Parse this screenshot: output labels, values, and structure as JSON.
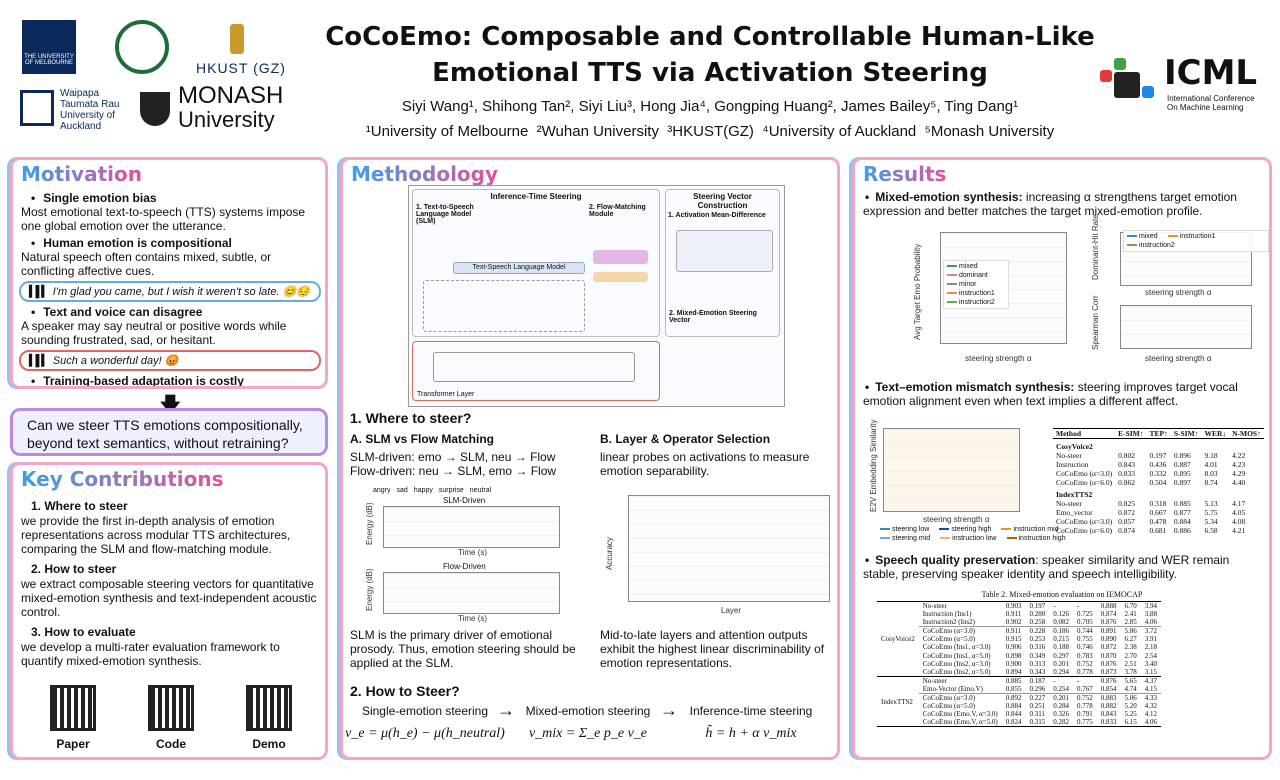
{
  "header": {
    "title_line1": "CoCoEmo: Composable and Controllable Human-Like",
    "title_line2": "Emotional TTS via Activation Steering",
    "authors": "Siyi Wang¹, Shihong Tan², Siyi Liu³, Hong Jia⁴, Gongping Huang², James Bailey⁵, Ting Dang¹",
    "affiliations": "¹University of Melbourne  ²Wuhan University  ³HKUST(GZ)  ⁴University of Auckland  ⁵Monash University",
    "logo_melbourne": "THE UNIVERSITY OF MELBOURNE",
    "logo_hkust": "HKUST (GZ)",
    "logo_auckland": "Waipapa Taumata Rau University of Auckland",
    "logo_monash_1": "MONASH",
    "logo_monash_2": "University",
    "icml_title": "ICML",
    "icml_subtitle": "International Conference On Machine Learning"
  },
  "motivation": {
    "title": "Motivation",
    "items": [
      {
        "heading": "Single emotion bias",
        "text": "Most emotional text-to-speech (TTS) systems impose one global emotion over the utterance."
      },
      {
        "heading": "Human emotion is compositional",
        "text": "Natural speech often contains mixed, subtle, or conflicting affective cues."
      },
      {
        "quote": "I'm glad you came, but I wish it weren't so late. 😊😔",
        "color": "#6fa8dc"
      },
      {
        "heading": "Text and voice can disagree",
        "text": "A speaker may say neutral or positive words while sounding frustrated, sad, or hesitant."
      },
      {
        "quote": "Such a wonderful day! 😡",
        "color": "#e06666"
      },
      {
        "heading": "Training-based adaptation is costly"
      }
    ]
  },
  "question": "Can we steer TTS emotions compositionally, beyond text semantics, without retraining?",
  "contributions": {
    "title": "Key Contributions",
    "items": [
      {
        "heading": "1. Where to steer",
        "text": "we provide the first in-depth analysis of emotion representations across modular TTS architectures, comparing the SLM and flow-matching module."
      },
      {
        "heading": "2. How to steer",
        "text": "we extract composable steering vectors for quantitative mixed-emotion synthesis and text-independent acoustic control."
      },
      {
        "heading": "3. How to evaluate",
        "text": "we develop a multi-rater evaluation framework to quantify mixed-emotion synthesis."
      }
    ],
    "qr_labels": [
      "Paper",
      "Code",
      "Demo"
    ]
  },
  "methodology": {
    "title": "Methodology",
    "figure": {
      "left_title": "Inference-Time Steering",
      "right_title": "Steering Vector Construction",
      "slm": "1. Text-to-Speech Language Model (SLM)",
      "flow": "2. Flow-Matching Module",
      "lm": "Text-Speech Language Model",
      "layer": "Transformer Layer",
      "amd": "1. Activation Mean-Difference",
      "mix": "2. Mixed-Emotion Steering Vector"
    },
    "where_title": "1. Where to steer?",
    "a_title": "A. SLM vs Flow Matching",
    "a_lines": [
      "SLM-driven: emo → SLM, neu → Flow",
      "Flow-driven: neu → SLM, emo → Flow"
    ],
    "a_legend": [
      {
        "name": "angry",
        "color": "#e06666"
      },
      {
        "name": "sad",
        "color": "#6fa8dc"
      },
      {
        "name": "happy",
        "color": "#f6b26b"
      },
      {
        "name": "surprise",
        "color": "#93c47d"
      },
      {
        "name": "neutral",
        "color": "#999999"
      }
    ],
    "a_chart1": "SLM-Driven",
    "a_chart2": "Flow-Driven",
    "a_xlabel": "Time (s)",
    "a_ylabel": "Energy (dB)",
    "a_caption": "SLM is the primary driver of emotional prosody. Thus, emotion steering should be applied at the SLM.",
    "b_title": "B. Layer & Operator Selection",
    "b_text": "linear probes on activations to measure emotion separability.",
    "b_xlabel": "Layer",
    "b_ylabel": "Accuracy",
    "b_caption": "Mid-to-late layers and attention outputs exhibit the highest linear discriminability of emotion representations.",
    "how_title": "2. How to Steer?",
    "steps": [
      "Single-emotion steering",
      "Mixed-emotion steering",
      "Inference-time steering"
    ],
    "formulas": [
      "v_e = μ(h_e) − μ(h_neutral)",
      "v_mix = Σ_e p_e v_e",
      "h̃ = h + α v_mix"
    ]
  },
  "results": {
    "title": "Results",
    "items": [
      {
        "heading": "Mixed-emotion synthesis:",
        "text": " increasing α strengthens target emotion expression and better matches the target mixed-emotion profile."
      },
      {
        "heading": "Text–emotion mismatch synthesis:",
        "text": " steering improves target vocal emotion alignment even when text implies a different affect."
      },
      {
        "heading": "Speech quality preservation",
        "text": ": speaker similarity and WER remain stable, preserving speaker identity and speech intelligibility."
      }
    ],
    "plot1": {
      "ylabel": "Avg Target Emo Probability",
      "xlabel": "steering strength α",
      "legend": [
        {
          "name": "mixed",
          "color": "#3d85c6"
        },
        {
          "name": "dominant",
          "color": "#e377c2"
        },
        {
          "name": "minor",
          "color": "#888888"
        },
        {
          "name": "instruction1",
          "color": "#e69138"
        },
        {
          "name": "instruction2",
          "color": "#6aa84f"
        }
      ]
    },
    "plot2": {
      "ylabel": "Dominant-Hit Rate",
      "ylabel2": "Spearman Corr",
      "xlabel": "steering strength α",
      "legend": [
        {
          "name": "mixed",
          "color": "#3d85c6"
        },
        {
          "name": "instruction1",
          "color": "#e69138"
        },
        {
          "name": "instruction2",
          "color": "#6aa84f"
        }
      ]
    },
    "plot3": {
      "ylabel": "E2V Embedding Similarity",
      "xlabel": "steering strength α",
      "legend": [
        {
          "name": "steering low",
          "color": "#3d85c6"
        },
        {
          "name": "steering high",
          "color": "#134f8c"
        },
        {
          "name": "instruction mid",
          "color": "#e69138"
        },
        {
          "name": "steering mid",
          "color": "#6fa8dc"
        },
        {
          "name": "instruction low",
          "color": "#f6b26b"
        },
        {
          "name": "instruction high",
          "color": "#b45f06"
        }
      ]
    },
    "table1": {
      "header": [
        "Method",
        "E-SIM↑",
        "TEP↑",
        "S-SIM↑",
        "WER↓",
        "N-MOS↑"
      ],
      "groups": [
        {
          "name": "CosyVoice2",
          "rows": [
            [
              "No-steer",
              "0.802",
              "0.197",
              "0.896",
              "9.18",
              "4.22"
            ],
            [
              "Instruction",
              "0.843",
              "0.436",
              "0.887",
              "4.01",
              "4.23"
            ],
            [
              "CoCoEmo (α=3.0)",
              "0.833",
              "0.332",
              "0.895",
              "8.03",
              "4.29"
            ],
            [
              "CoCoEmo (α=6.0)",
              "0.862",
              "0.504",
              "0.897",
              "8.74",
              "4.40"
            ]
          ]
        },
        {
          "name": "IndexTTS2",
          "rows": [
            [
              "No-steer",
              "0.825",
              "0.318",
              "0.885",
              "5.13",
              "4.17"
            ],
            [
              "Emo_vector",
              "0.872",
              "0.667",
              "0.877",
              "5.75",
              "4.05"
            ],
            [
              "CoCoEmo (α=3.0)",
              "0.857",
              "0.478",
              "0.884",
              "5.34",
              "4.08"
            ],
            [
              "CoCoEmo (α=6.0)",
              "0.874",
              "0.681",
              "0.886",
              "6.58",
              "4.21"
            ]
          ]
        }
      ]
    },
    "table2": {
      "caption": "Table 2. Mixed-emotion evaluation on IEMOCAP",
      "groups": [
        {
          "name": "CosyVoice2",
          "rows": [
            [
              "No-steer",
              "0.903",
              "0.197",
              "-",
              "-",
              "0.888",
              "6.70",
              "3.94"
            ],
            [
              "Instruction (Ins1)",
              "0.911",
              "0.280",
              "0.126",
              "0.725",
              "0.874",
              "2.41",
              "3.88"
            ],
            [
              "Instruction2 (Ins2)",
              "0.902",
              "0.258",
              "0.082",
              "0.705",
              "0.876",
              "2.85",
              "4.06"
            ],
            [
              "CoCoEmo (α=3.0)",
              "0.911",
              "0.228",
              "0.186",
              "0.744",
              "0.891",
              "5.86",
              "3.72"
            ],
            [
              "CoCoEmo (α=5.0)",
              "0.915",
              "0.253",
              "0.215",
              "0.755",
              "0.890",
              "6.27",
              "3.91"
            ],
            [
              "CoCoEmo (Ins1, α=3.0)",
              "0.906",
              "0.316",
              "0.188",
              "0.746",
              "0.872",
              "2.38",
              "2.18"
            ],
            [
              "CoCoEmo (Ins1, α=5.0)",
              "0.898",
              "0.349",
              "0.297",
              "0.783",
              "0.870",
              "2.70",
              "2.54"
            ],
            [
              "CoCoEmo (Ins2, α=3.0)",
              "0.900",
              "0.313",
              "0.201",
              "0.752",
              "0.876",
              "2.51",
              "3.40"
            ],
            [
              "CoCoEmo (Ins2, α=5.0)",
              "0.894",
              "0.343",
              "0.294",
              "0.778",
              "0.873",
              "3.78",
              "3.15"
            ]
          ]
        },
        {
          "name": "IndexTTS2",
          "rows": [
            [
              "No-steer",
              "0.885",
              "0.187",
              "-",
              "-",
              "0.876",
              "5.65",
              "4.37"
            ],
            [
              "Emo-Vector (Emo.V)",
              "0.855",
              "0.296",
              "0.254",
              "0.767",
              "0.854",
              "4.74",
              "4.15"
            ],
            [
              "CoCoEmo (α=3.0)",
              "0.892",
              "0.227",
              "0.201",
              "0.752",
              "0.883",
              "5.06",
              "4.33"
            ],
            [
              "CoCoEmo (α=5.0)",
              "0.884",
              "0.251",
              "0.284",
              "0.778",
              "0.882",
              "5.20",
              "4.32"
            ],
            [
              "CoCoEmo (Emo.V, α=3.0)",
              "0.844",
              "0.311",
              "0.326",
              "0.791",
              "0.843",
              "5.25",
              "4.12"
            ],
            [
              "CoCoEmo (Emo.V, α=5.0)",
              "0.824",
              "0.315",
              "0.282",
              "0.775",
              "0.833",
              "6.15",
              "4.06"
            ]
          ]
        }
      ]
    }
  }
}
